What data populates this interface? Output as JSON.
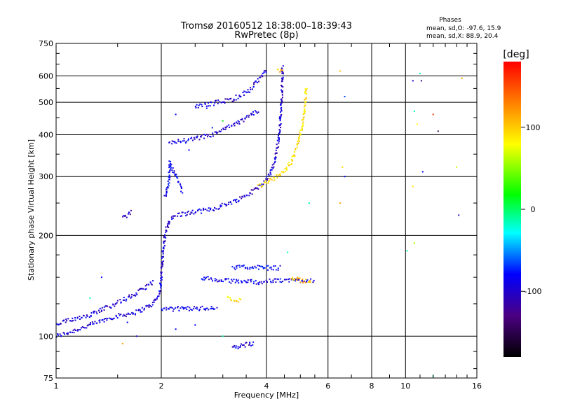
{
  "chart_data": {
    "type": "scatter",
    "title": "Tromsø 20160512 18:38:00–18:39:43",
    "subtitle": "RwPretec (8p)",
    "xlabel": "Frequency [MHz]",
    "ylabel": "Stationary phase Virtual Height [km]",
    "xscale": "log",
    "yscale": "log",
    "xlim": [
      1,
      16
    ],
    "ylim": [
      75,
      750
    ],
    "xticks": [
      1,
      2,
      4,
      6,
      8,
      10,
      16
    ],
    "yticks": [
      75,
      100,
      200,
      300,
      400,
      500,
      600,
      750
    ],
    "grid": true,
    "stats": {
      "title": "Phases",
      "o_line": "mean, sd,O: -97.6, 15.9",
      "x_line": "mean, sd,X:  88.9, 20.4"
    },
    "colorbar": {
      "title": "[deg]",
      "range": [
        -180,
        180
      ],
      "ticks": [
        -100,
        0,
        100
      ],
      "colors": [
        "#000000",
        "#4b0082",
        "#0000ff",
        "#00ffff",
        "#00ff00",
        "#ffff00",
        "#ff8000",
        "#ff0000"
      ]
    },
    "series": [
      {
        "name": "O",
        "phase": -100,
        "points": []
      },
      {
        "name": "X",
        "phase": 90,
        "points": []
      }
    ],
    "traces": [
      {
        "phase": -110,
        "pts": [
          [
            1.0,
            100
          ],
          [
            1.1,
            103
          ],
          [
            1.25,
            108
          ],
          [
            1.45,
            114
          ],
          [
            1.7,
            118
          ],
          [
            1.9,
            125
          ],
          [
            1.98,
            135
          ],
          [
            2.0,
            150
          ],
          [
            2.02,
            175
          ],
          [
            2.05,
            200
          ],
          [
            2.1,
            220
          ],
          [
            2.2,
            230
          ],
          [
            2.5,
            235
          ],
          [
            2.8,
            240
          ],
          [
            3.0,
            246
          ],
          [
            3.3,
            255
          ],
          [
            3.6,
            268
          ],
          [
            3.9,
            285
          ],
          [
            4.1,
            305
          ],
          [
            4.25,
            340
          ],
          [
            4.35,
            400
          ],
          [
            4.42,
            500
          ],
          [
            4.45,
            640
          ]
        ]
      },
      {
        "phase": -110,
        "pts": [
          [
            1.0,
            108
          ],
          [
            1.1,
            112
          ],
          [
            1.25,
            116
          ],
          [
            1.4,
            122
          ],
          [
            1.55,
            128
          ],
          [
            1.7,
            134
          ],
          [
            1.8,
            140
          ],
          [
            1.9,
            146
          ]
        ]
      },
      {
        "phase": -105,
        "pts": [
          [
            2.0,
            120
          ],
          [
            2.3,
            121
          ],
          [
            2.6,
            121
          ],
          [
            2.9,
            122
          ]
        ]
      },
      {
        "phase": -100,
        "pts": [
          [
            2.05,
            260
          ],
          [
            2.1,
            290
          ],
          [
            2.12,
            330
          ],
          [
            2.3,
            270
          ]
        ]
      },
      {
        "phase": -105,
        "pts": [
          [
            2.6,
            150
          ],
          [
            2.9,
            147
          ],
          [
            3.2,
            146
          ],
          [
            3.5,
            146
          ],
          [
            3.8,
            145
          ],
          [
            4.1,
            146
          ],
          [
            4.5,
            147
          ],
          [
            5.0,
            147
          ],
          [
            5.5,
            147
          ]
        ]
      },
      {
        "phase": -100,
        "pts": [
          [
            3.2,
            160
          ],
          [
            3.6,
            161
          ],
          [
            4.0,
            160
          ],
          [
            4.4,
            160
          ]
        ]
      },
      {
        "phase": -110,
        "pts": [
          [
            2.5,
            485
          ],
          [
            2.9,
            500
          ],
          [
            3.2,
            510
          ],
          [
            3.6,
            545
          ],
          [
            3.9,
            600
          ],
          [
            4.0,
            630
          ]
        ]
      },
      {
        "phase": -110,
        "pts": [
          [
            2.1,
            380
          ],
          [
            2.4,
            385
          ],
          [
            2.8,
            400
          ],
          [
            3.1,
            420
          ],
          [
            3.4,
            440
          ],
          [
            3.8,
            475
          ]
        ]
      },
      {
        "phase": -110,
        "pts": [
          [
            3.2,
            92
          ],
          [
            3.4,
            94
          ],
          [
            3.7,
            95
          ]
        ]
      },
      {
        "phase": -110,
        "pts": [
          [
            1.55,
            225
          ],
          [
            1.6,
            230
          ],
          [
            1.65,
            235
          ]
        ]
      },
      {
        "phase": 100,
        "pts": [
          [
            3.8,
            280
          ],
          [
            4.1,
            292
          ],
          [
            4.4,
            305
          ],
          [
            4.7,
            330
          ],
          [
            4.9,
            370
          ],
          [
            5.05,
            420
          ],
          [
            5.15,
            480
          ],
          [
            5.2,
            560
          ]
        ]
      },
      {
        "phase": 100,
        "pts": [
          [
            3.1,
            130
          ],
          [
            3.3,
            128
          ],
          [
            3.4,
            127
          ]
        ]
      },
      {
        "phase": 110,
        "pts": [
          [
            4.7,
            150
          ],
          [
            5.1,
            146
          ],
          [
            5.4,
            146
          ]
        ]
      },
      {
        "phase": 110,
        "pts": [
          [
            4.3,
            620
          ],
          [
            4.5,
            630
          ]
        ]
      }
    ],
    "scatter_dots": [
      [
        2.2,
        460,
        -100
      ],
      [
        2.7,
        480,
        -100
      ],
      [
        3.0,
        440,
        0
      ],
      [
        2.4,
        360,
        -100
      ],
      [
        2.8,
        420,
        -90
      ],
      [
        6.5,
        620,
        110
      ],
      [
        6.7,
        520,
        -80
      ],
      [
        6.6,
        320,
        100
      ],
      [
        6.5,
        250,
        120
      ],
      [
        6.7,
        300,
        -100
      ],
      [
        10.5,
        580,
        -110
      ],
      [
        11.0,
        610,
        -20
      ],
      [
        11.1,
        580,
        -140
      ],
      [
        10.6,
        470,
        -20
      ],
      [
        12.0,
        460,
        160
      ],
      [
        10.8,
        430,
        90
      ],
      [
        12.4,
        410,
        -150
      ],
      [
        10.5,
        280,
        100
      ],
      [
        11.2,
        310,
        -100
      ],
      [
        14.0,
        320,
        70
      ],
      [
        14.5,
        590,
        120
      ],
      [
        14.2,
        230,
        -120
      ],
      [
        10.6,
        190,
        60
      ],
      [
        10.1,
        180,
        -20
      ],
      [
        12.0,
        76,
        -20
      ],
      [
        5.3,
        250,
        -20
      ],
      [
        4.6,
        178,
        -20
      ],
      [
        1.6,
        110,
        -100
      ],
      [
        1.55,
        95,
        120
      ],
      [
        1.7,
        100,
        -110
      ],
      [
        2.2,
        105,
        -100
      ],
      [
        3.0,
        100,
        -20
      ],
      [
        2.5,
        108,
        -100
      ],
      [
        1.35,
        150,
        -100
      ],
      [
        1.25,
        130,
        -20
      ]
    ]
  }
}
